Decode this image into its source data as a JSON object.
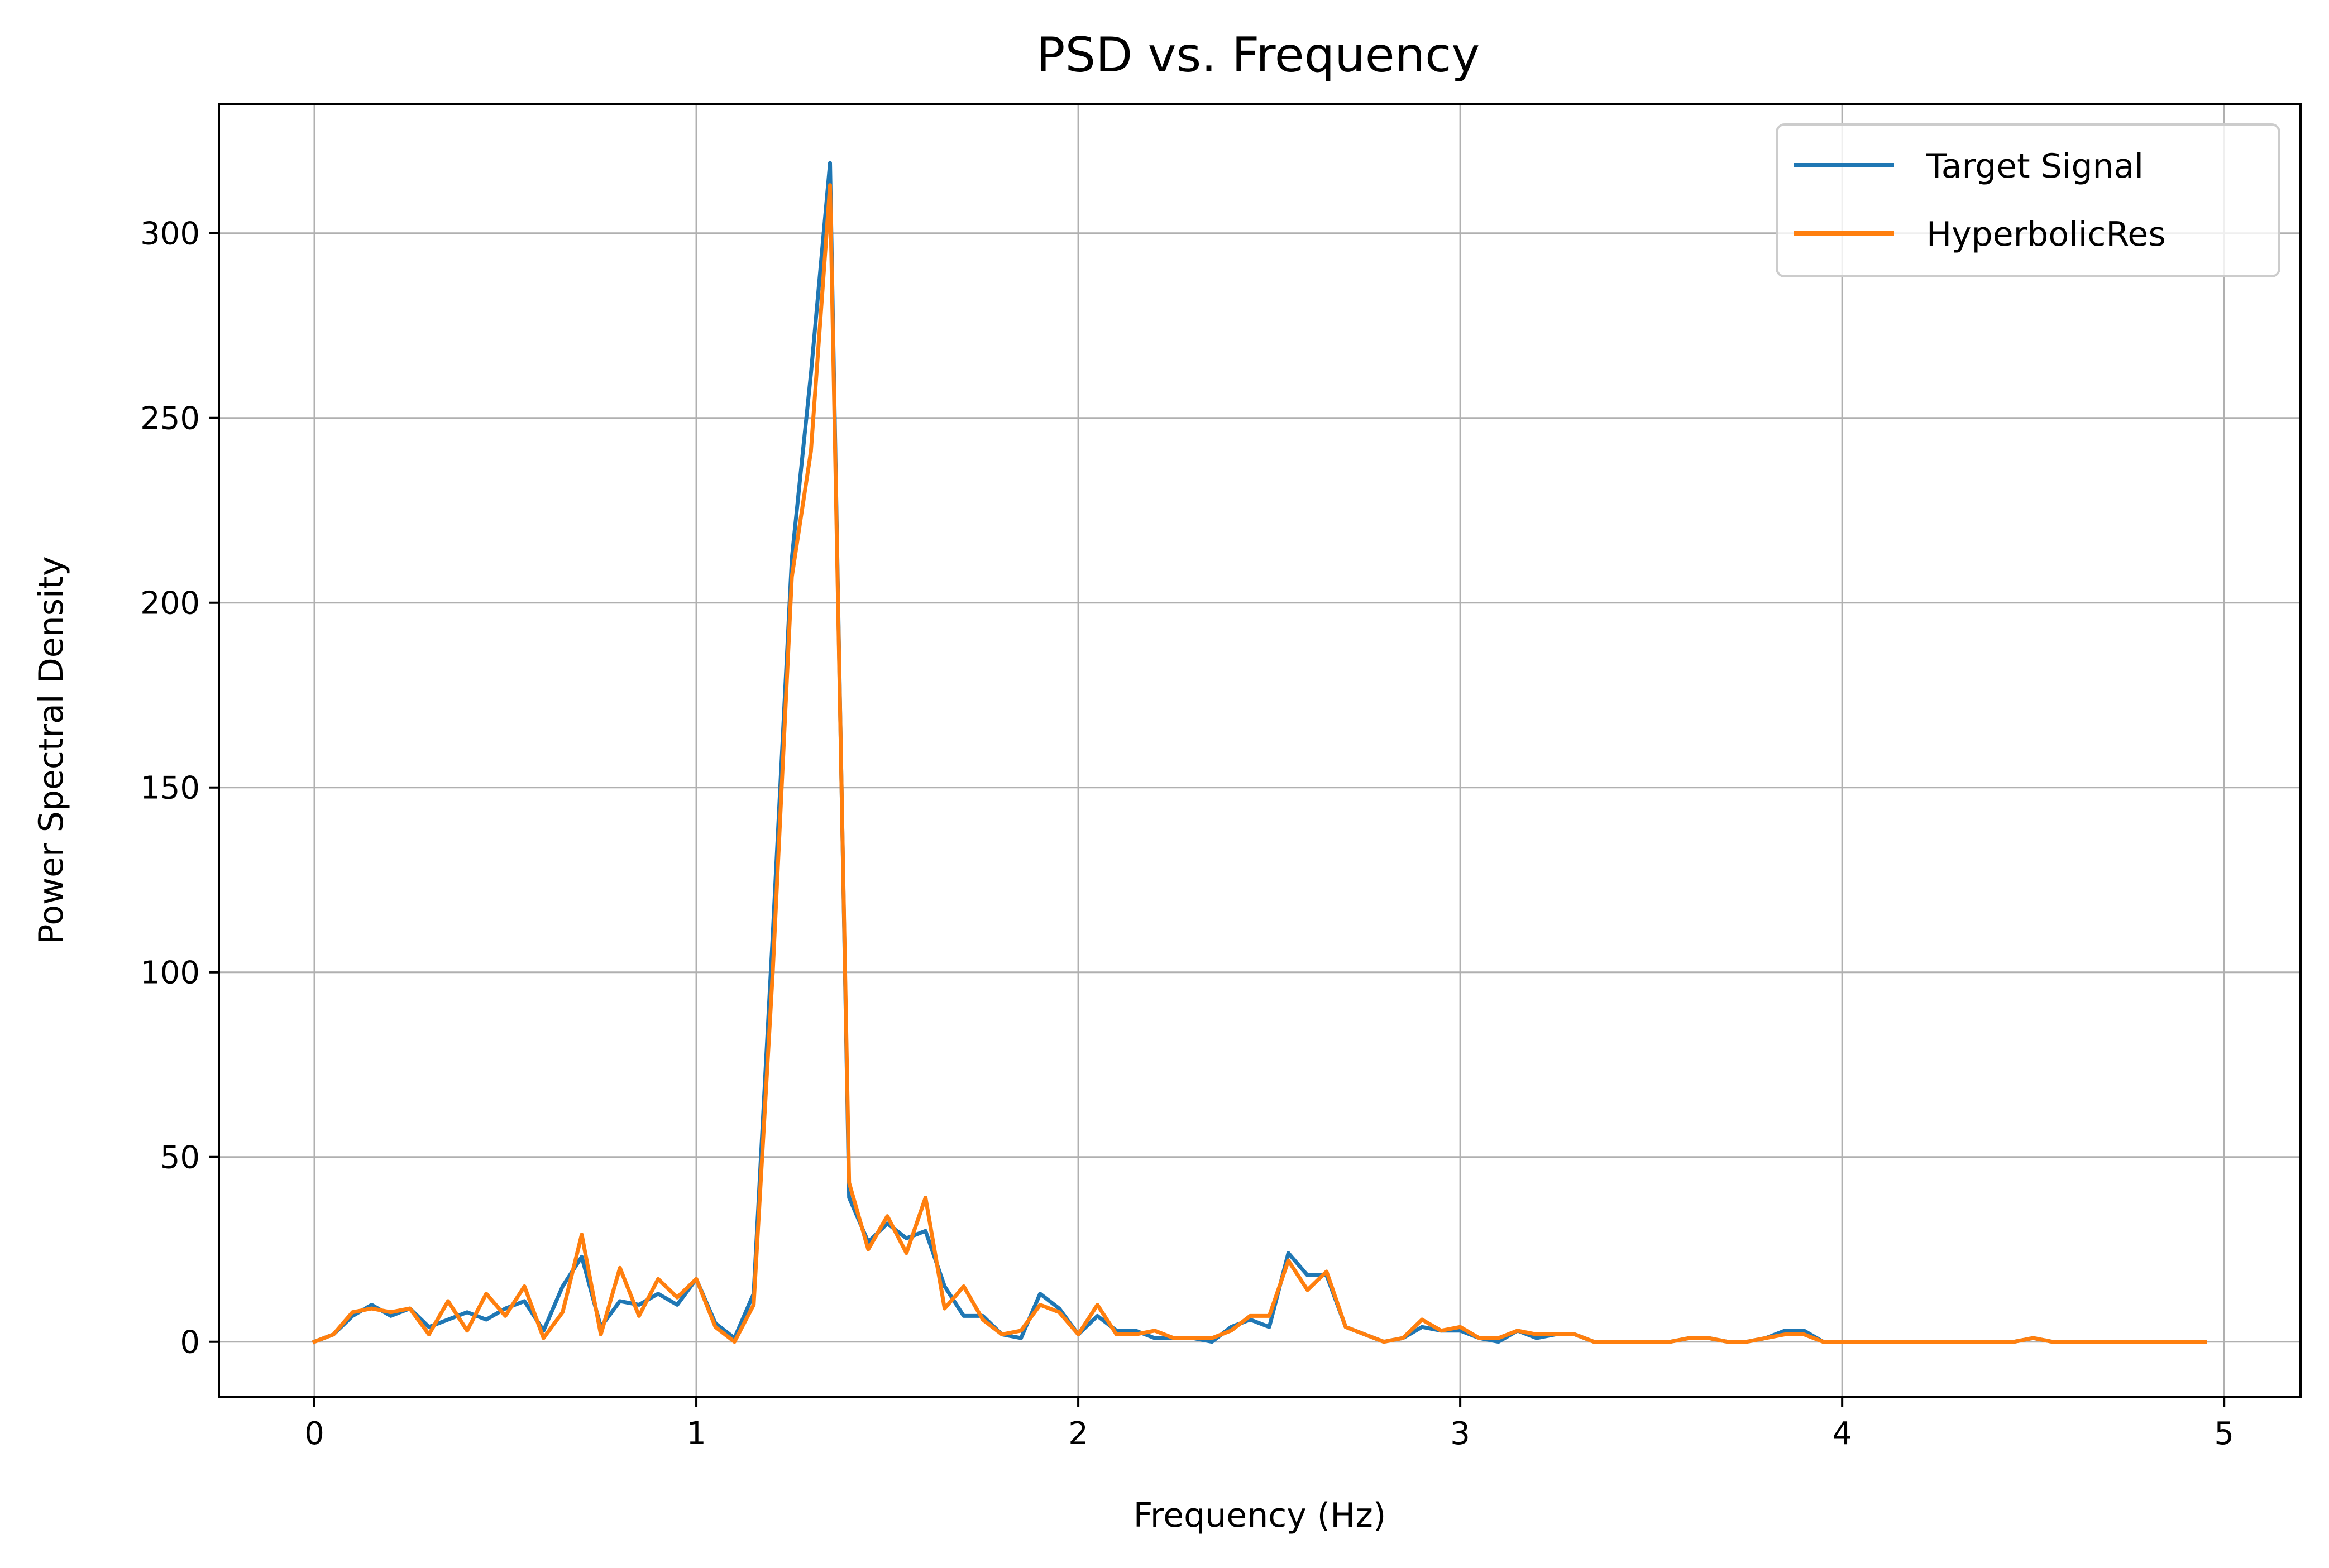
{
  "chart_data": {
    "type": "line",
    "title": "PSD vs. Frequency",
    "xlabel": "Frequency (Hz)",
    "ylabel": "Power Spectral Density",
    "xlim": [
      -0.25,
      5.2
    ],
    "ylim": [
      -15,
      335
    ],
    "xticks": [
      0,
      1,
      2,
      3,
      4,
      5
    ],
    "yticks": [
      0,
      50,
      100,
      150,
      200,
      250,
      300
    ],
    "grid": true,
    "legend_position": "top-right",
    "x": [
      0,
      0.05,
      0.1,
      0.15,
      0.2,
      0.25,
      0.3,
      0.35,
      0.4,
      0.45,
      0.5,
      0.55,
      0.6,
      0.65,
      0.7,
      0.75,
      0.8,
      0.85,
      0.9,
      0.95,
      1.0,
      1.05,
      1.1,
      1.15,
      1.2,
      1.25,
      1.3,
      1.35,
      1.4,
      1.45,
      1.5,
      1.55,
      1.6,
      1.65,
      1.7,
      1.75,
      1.8,
      1.85,
      1.9,
      1.95,
      2.0,
      2.05,
      2.1,
      2.15,
      2.2,
      2.25,
      2.3,
      2.35,
      2.4,
      2.45,
      2.5,
      2.55,
      2.6,
      2.65,
      2.7,
      2.75,
      2.8,
      2.85,
      2.9,
      2.95,
      3.0,
      3.05,
      3.1,
      3.15,
      3.2,
      3.25,
      3.3,
      3.35,
      3.4,
      3.45,
      3.5,
      3.55,
      3.6,
      3.65,
      3.7,
      3.75,
      3.8,
      3.85,
      3.9,
      3.95,
      4.0,
      4.05,
      4.1,
      4.15,
      4.2,
      4.25,
      4.3,
      4.35,
      4.4,
      4.45,
      4.5,
      4.55,
      4.6,
      4.65,
      4.7,
      4.75,
      4.8,
      4.85,
      4.9,
      4.95
    ],
    "series": [
      {
        "name": "Target Signal",
        "color": "#1f77b4",
        "values": [
          0,
          2,
          7,
          10,
          7,
          9,
          4,
          6,
          8,
          6,
          9,
          11,
          3,
          15,
          23,
          4,
          11,
          10,
          13,
          10,
          17,
          5,
          1,
          13,
          110,
          212,
          262,
          319,
          39,
          27,
          32,
          28,
          30,
          15,
          7,
          7,
          2,
          1,
          13,
          9,
          2,
          7,
          3,
          3,
          1,
          1,
          1,
          0,
          4,
          6,
          4,
          24,
          18,
          18,
          4,
          2,
          0,
          1,
          4,
          3,
          3,
          1,
          0,
          3,
          1,
          2,
          2,
          0,
          0,
          0,
          0,
          0,
          1,
          1,
          0,
          0,
          1,
          3,
          3,
          0,
          0,
          0,
          0,
          0,
          0,
          0,
          0,
          0,
          0,
          0,
          1,
          0,
          0,
          0,
          0,
          0,
          0,
          0,
          0,
          0
        ]
      },
      {
        "name": "HyperbolicRes",
        "color": "#ff7f0e",
        "values": [
          0,
          2,
          8,
          9,
          8,
          9,
          2,
          11,
          3,
          13,
          7,
          15,
          1,
          8,
          29,
          2,
          20,
          7,
          17,
          12,
          17,
          4,
          0,
          10,
          100,
          207,
          241,
          313,
          43,
          25,
          34,
          24,
          39,
          9,
          15,
          6,
          2,
          3,
          10,
          8,
          2,
          10,
          2,
          2,
          3,
          1,
          1,
          1,
          3,
          7,
          7,
          22,
          14,
          19,
          4,
          2,
          0,
          1,
          6,
          3,
          4,
          1,
          1,
          3,
          2,
          2,
          2,
          0,
          0,
          0,
          0,
          0,
          1,
          1,
          0,
          0,
          1,
          2,
          2,
          0,
          0,
          0,
          0,
          0,
          0,
          0,
          0,
          0,
          0,
          0,
          1,
          0,
          0,
          0,
          0,
          0,
          0,
          0,
          0,
          0
        ]
      }
    ]
  }
}
